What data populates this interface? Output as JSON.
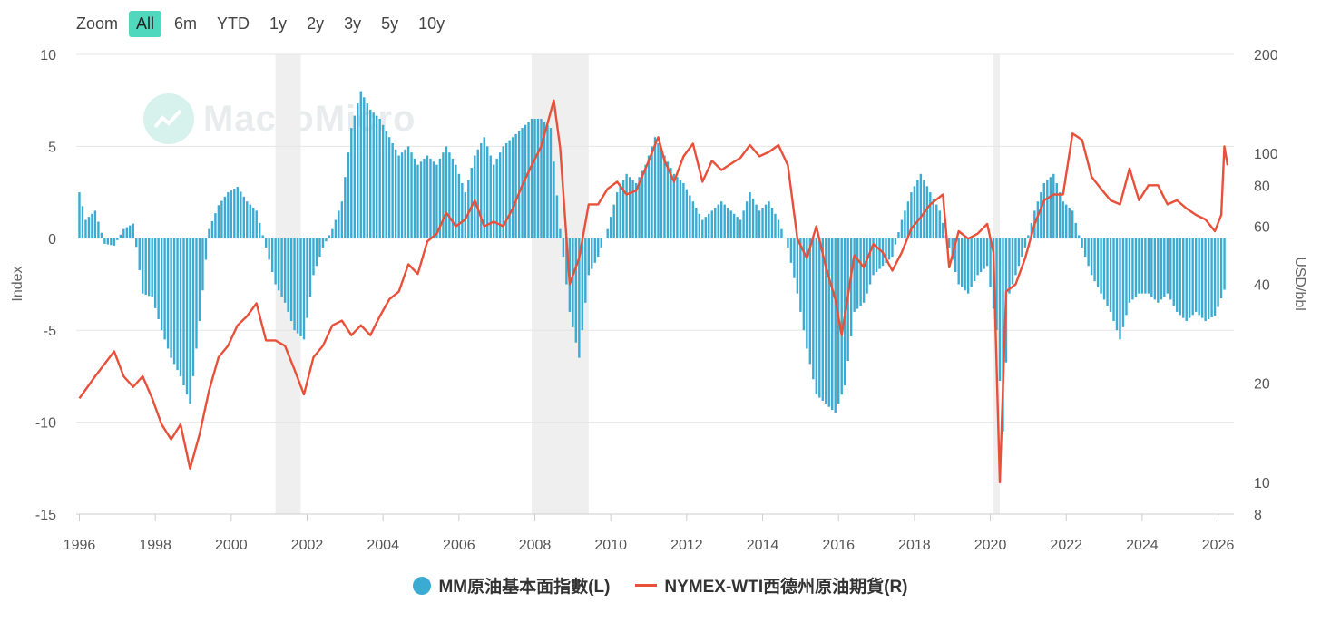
{
  "zoom": {
    "label": "Zoom",
    "options": [
      "All",
      "6m",
      "YTD",
      "1y",
      "2y",
      "3y",
      "5y",
      "10y"
    ],
    "selected": "All"
  },
  "watermark": "MacroMicro",
  "colors": {
    "bars": "#3aabd2",
    "line": "#e8503a",
    "recession": "#efefef",
    "grid": "#e6e6e6",
    "zoom_active": "#4fd8be"
  },
  "legend": [
    {
      "label": "MM原油基本面指數(L)",
      "color": "#3aabd2",
      "marker": "dot"
    },
    {
      "label": "NYMEX-WTI西德州原油期貨(R)",
      "color": "#e8503a",
      "marker": "line"
    }
  ],
  "chart_data": {
    "type": "bar+line",
    "x_axis": {
      "type": "date",
      "range": [
        "1995-12",
        "2026-06"
      ],
      "ticks": [
        "1996",
        "1998",
        "2000",
        "2002",
        "2004",
        "2006",
        "2008",
        "2010",
        "2012",
        "2014",
        "2016",
        "2018",
        "2020",
        "2022",
        "2024",
        "2026"
      ]
    },
    "y_left": {
      "label": "Index",
      "range": [
        -15,
        10
      ],
      "ticks": [
        "10",
        "5",
        "0",
        "-5",
        "-10",
        "-15"
      ]
    },
    "y_right": {
      "label": "USD/bbl",
      "scale": "log",
      "range": [
        8,
        200
      ],
      "ticks": [
        "200",
        "100",
        "80",
        "60",
        "40",
        "20",
        "10",
        "8"
      ]
    },
    "recession_periods": [
      [
        "2001-03",
        "2001-11"
      ],
      [
        "2007-12",
        "2009-06"
      ],
      [
        "2020-02",
        "2020-04"
      ]
    ],
    "series": [
      {
        "name": "MM原油基本面指數(L)",
        "type": "bar",
        "axis": "left",
        "points": [
          [
            "1996-01",
            2.5
          ],
          [
            "1996-03",
            1.0
          ],
          [
            "1996-06",
            1.5
          ],
          [
            "1996-09",
            -0.3
          ],
          [
            "1996-12",
            -0.4
          ],
          [
            "1997-03",
            0.5
          ],
          [
            "1997-06",
            0.8
          ],
          [
            "1997-09",
            -3.0
          ],
          [
            "1997-12",
            -3.2
          ],
          [
            "1998-03",
            -5.0
          ],
          [
            "1998-06",
            -6.5
          ],
          [
            "1998-09",
            -7.5
          ],
          [
            "1998-12",
            -9.0
          ],
          [
            "1999-03",
            -4.5
          ],
          [
            "1999-06",
            0.5
          ],
          [
            "1999-09",
            1.8
          ],
          [
            "1999-12",
            2.5
          ],
          [
            "2000-03",
            2.8
          ],
          [
            "2000-06",
            2.0
          ],
          [
            "2000-09",
            1.5
          ],
          [
            "2000-12",
            -0.5
          ],
          [
            "2001-03",
            -2.5
          ],
          [
            "2001-06",
            -3.5
          ],
          [
            "2001-09",
            -5.0
          ],
          [
            "2001-12",
            -5.5
          ],
          [
            "2002-03",
            -2.0
          ],
          [
            "2002-06",
            -0.5
          ],
          [
            "2002-09",
            0.5
          ],
          [
            "2002-12",
            2.0
          ],
          [
            "2003-03",
            6.0
          ],
          [
            "2003-06",
            8.0
          ],
          [
            "2003-09",
            7.0
          ],
          [
            "2003-12",
            6.5
          ],
          [
            "2004-03",
            5.5
          ],
          [
            "2004-06",
            4.5
          ],
          [
            "2004-09",
            5.0
          ],
          [
            "2004-12",
            4.0
          ],
          [
            "2005-03",
            4.5
          ],
          [
            "2005-06",
            4.0
          ],
          [
            "2005-09",
            5.0
          ],
          [
            "2005-12",
            4.0
          ],
          [
            "2006-03",
            2.5
          ],
          [
            "2006-06",
            4.5
          ],
          [
            "2006-09",
            5.5
          ],
          [
            "2006-12",
            4.0
          ],
          [
            "2007-03",
            5.0
          ],
          [
            "2007-06",
            5.5
          ],
          [
            "2007-09",
            6.0
          ],
          [
            "2007-12",
            6.5
          ],
          [
            "2008-03",
            6.5
          ],
          [
            "2008-06",
            6.0
          ],
          [
            "2008-09",
            0.5
          ],
          [
            "2008-12",
            -4.0
          ],
          [
            "2009-03",
            -6.5
          ],
          [
            "2009-06",
            -2.0
          ],
          [
            "2009-09",
            -1.0
          ],
          [
            "2009-12",
            0.5
          ],
          [
            "2010-03",
            2.5
          ],
          [
            "2010-06",
            3.5
          ],
          [
            "2010-09",
            3.0
          ],
          [
            "2010-12",
            4.0
          ],
          [
            "2011-03",
            5.5
          ],
          [
            "2011-06",
            4.5
          ],
          [
            "2011-09",
            3.5
          ],
          [
            "2011-12",
            3.0
          ],
          [
            "2012-03",
            2.0
          ],
          [
            "2012-06",
            1.0
          ],
          [
            "2012-09",
            1.5
          ],
          [
            "2012-12",
            2.0
          ],
          [
            "2013-03",
            1.5
          ],
          [
            "2013-06",
            1.0
          ],
          [
            "2013-09",
            2.5
          ],
          [
            "2013-12",
            1.5
          ],
          [
            "2014-03",
            2.0
          ],
          [
            "2014-06",
            1.0
          ],
          [
            "2014-09",
            -0.5
          ],
          [
            "2014-12",
            -3.0
          ],
          [
            "2015-03",
            -6.0
          ],
          [
            "2015-06",
            -8.5
          ],
          [
            "2015-09",
            -9.0
          ],
          [
            "2015-12",
            -9.5
          ],
          [
            "2016-03",
            -8.0
          ],
          [
            "2016-06",
            -4.0
          ],
          [
            "2016-09",
            -3.5
          ],
          [
            "2016-12",
            -2.0
          ],
          [
            "2017-03",
            -1.5
          ],
          [
            "2017-06",
            -1.0
          ],
          [
            "2017-09",
            1.0
          ],
          [
            "2017-12",
            2.5
          ],
          [
            "2018-03",
            3.5
          ],
          [
            "2018-06",
            2.5
          ],
          [
            "2018-09",
            1.5
          ],
          [
            "2018-12",
            -0.5
          ],
          [
            "2019-03",
            -2.5
          ],
          [
            "2019-06",
            -3.0
          ],
          [
            "2019-09",
            -2.0
          ],
          [
            "2019-12",
            -1.5
          ],
          [
            "2020-03",
            -5.0
          ],
          [
            "2020-05",
            -10.5
          ],
          [
            "2020-07",
            -3.0
          ],
          [
            "2020-09",
            -2.0
          ],
          [
            "2020-12",
            -0.5
          ],
          [
            "2021-03",
            1.5
          ],
          [
            "2021-06",
            3.0
          ],
          [
            "2021-09",
            3.5
          ],
          [
            "2021-12",
            2.0
          ],
          [
            "2022-03",
            1.5
          ],
          [
            "2022-06",
            -0.5
          ],
          [
            "2022-09",
            -2.0
          ],
          [
            "2022-12",
            -3.0
          ],
          [
            "2023-03",
            -4.0
          ],
          [
            "2023-06",
            -5.5
          ],
          [
            "2023-09",
            -3.5
          ],
          [
            "2023-12",
            -3.0
          ],
          [
            "2024-03",
            -3.0
          ],
          [
            "2024-06",
            -3.5
          ],
          [
            "2024-09",
            -3.0
          ],
          [
            "2024-12",
            -4.0
          ],
          [
            "2025-03",
            -4.5
          ],
          [
            "2025-06",
            -4.0
          ],
          [
            "2025-09",
            -4.5
          ],
          [
            "2025-12",
            -4.2
          ],
          [
            "2026-03",
            -2.8
          ]
        ]
      },
      {
        "name": "NYMEX-WTI西德州原油期貨(R)",
        "type": "line",
        "axis": "right",
        "points": [
          [
            "1996-01",
            18
          ],
          [
            "1996-06",
            21
          ],
          [
            "1996-12",
            25
          ],
          [
            "1997-03",
            21
          ],
          [
            "1997-06",
            19.5
          ],
          [
            "1997-09",
            21
          ],
          [
            "1997-12",
            18
          ],
          [
            "1998-03",
            15
          ],
          [
            "1998-06",
            13.5
          ],
          [
            "1998-09",
            15
          ],
          [
            "1998-12",
            11
          ],
          [
            "1999-03",
            14
          ],
          [
            "1999-06",
            19
          ],
          [
            "1999-09",
            24
          ],
          [
            "1999-12",
            26
          ],
          [
            "2000-03",
            30
          ],
          [
            "2000-06",
            32
          ],
          [
            "2000-09",
            35
          ],
          [
            "2000-12",
            27
          ],
          [
            "2001-03",
            27
          ],
          [
            "2001-06",
            26
          ],
          [
            "2001-09",
            22
          ],
          [
            "2001-12",
            18.5
          ],
          [
            "2002-03",
            24
          ],
          [
            "2002-06",
            26
          ],
          [
            "2002-09",
            30
          ],
          [
            "2002-12",
            31
          ],
          [
            "2003-03",
            28
          ],
          [
            "2003-06",
            30
          ],
          [
            "2003-09",
            28
          ],
          [
            "2003-12",
            32
          ],
          [
            "2004-03",
            36
          ],
          [
            "2004-06",
            38
          ],
          [
            "2004-09",
            46
          ],
          [
            "2004-12",
            43
          ],
          [
            "2005-03",
            54
          ],
          [
            "2005-06",
            57
          ],
          [
            "2005-09",
            66
          ],
          [
            "2005-12",
            60
          ],
          [
            "2006-03",
            63
          ],
          [
            "2006-06",
            72
          ],
          [
            "2006-09",
            60
          ],
          [
            "2006-12",
            62
          ],
          [
            "2007-03",
            60
          ],
          [
            "2007-06",
            68
          ],
          [
            "2007-09",
            80
          ],
          [
            "2007-12",
            92
          ],
          [
            "2008-03",
            105
          ],
          [
            "2008-07",
            145
          ],
          [
            "2008-09",
            104
          ],
          [
            "2008-12",
            40
          ],
          [
            "2009-03",
            48
          ],
          [
            "2009-06",
            70
          ],
          [
            "2009-09",
            70
          ],
          [
            "2009-12",
            78
          ],
          [
            "2010-03",
            82
          ],
          [
            "2010-06",
            75
          ],
          [
            "2010-09",
            77
          ],
          [
            "2010-12",
            90
          ],
          [
            "2011-04",
            112
          ],
          [
            "2011-06",
            95
          ],
          [
            "2011-09",
            82
          ],
          [
            "2011-12",
            98
          ],
          [
            "2012-03",
            107
          ],
          [
            "2012-06",
            82
          ],
          [
            "2012-09",
            95
          ],
          [
            "2012-12",
            89
          ],
          [
            "2013-03",
            93
          ],
          [
            "2013-06",
            97
          ],
          [
            "2013-09",
            106
          ],
          [
            "2013-12",
            98
          ],
          [
            "2014-03",
            101
          ],
          [
            "2014-06",
            106
          ],
          [
            "2014-09",
            92
          ],
          [
            "2014-12",
            55
          ],
          [
            "2015-03",
            48
          ],
          [
            "2015-06",
            60
          ],
          [
            "2015-09",
            45
          ],
          [
            "2015-12",
            36
          ],
          [
            "2016-02",
            28
          ],
          [
            "2016-06",
            49
          ],
          [
            "2016-09",
            45
          ],
          [
            "2016-12",
            53
          ],
          [
            "2017-03",
            50
          ],
          [
            "2017-06",
            44
          ],
          [
            "2017-09",
            50
          ],
          [
            "2017-12",
            59
          ],
          [
            "2018-03",
            64
          ],
          [
            "2018-06",
            70
          ],
          [
            "2018-10",
            75
          ],
          [
            "2018-12",
            45
          ],
          [
            "2019-03",
            58
          ],
          [
            "2019-06",
            55
          ],
          [
            "2019-09",
            57
          ],
          [
            "2019-12",
            61
          ],
          [
            "2020-02",
            50
          ],
          [
            "2020-04",
            10
          ],
          [
            "2020-06",
            38
          ],
          [
            "2020-09",
            40
          ],
          [
            "2020-12",
            48
          ],
          [
            "2021-03",
            61
          ],
          [
            "2021-06",
            72
          ],
          [
            "2021-09",
            75
          ],
          [
            "2021-12",
            75
          ],
          [
            "2022-03",
            115
          ],
          [
            "2022-06",
            110
          ],
          [
            "2022-09",
            85
          ],
          [
            "2022-12",
            78
          ],
          [
            "2023-03",
            72
          ],
          [
            "2023-06",
            70
          ],
          [
            "2023-09",
            90
          ],
          [
            "2023-12",
            72
          ],
          [
            "2024-03",
            80
          ],
          [
            "2024-06",
            80
          ],
          [
            "2024-09",
            70
          ],
          [
            "2024-12",
            72
          ],
          [
            "2025-03",
            68
          ],
          [
            "2025-06",
            65
          ],
          [
            "2025-09",
            63
          ],
          [
            "2025-12",
            58
          ],
          [
            "2026-02",
            65
          ],
          [
            "2026-03",
            105
          ],
          [
            "2026-04",
            92
          ]
        ]
      }
    ]
  }
}
